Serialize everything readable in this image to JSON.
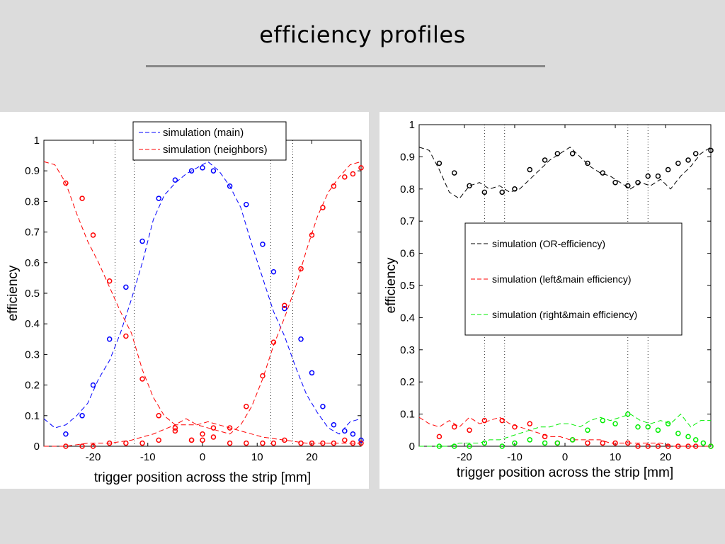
{
  "title": "efficiency profiles",
  "chart_data": [
    {
      "type": "line",
      "xlabel": "trigger position across the strip [mm]",
      "ylabel": "efficiency",
      "xlim": [
        -29,
        29
      ],
      "ylim": [
        0,
        1
      ],
      "xticks": [
        -20,
        -10,
        0,
        10,
        20
      ],
      "yticks": [
        0,
        0.1,
        0.2,
        0.3,
        0.4,
        0.5,
        0.6,
        0.7,
        0.8,
        0.9,
        1
      ],
      "vlines": [
        -16,
        -12.5,
        12.5,
        16.5
      ],
      "legend_position": "top-center",
      "series": [
        {
          "name": "simulation (main)",
          "style": "dashed",
          "color": "#0000ff",
          "x": [
            -29,
            -27,
            -25,
            -23,
            -21,
            -19,
            -17,
            -15,
            -13,
            -11,
            -9,
            -7,
            -5,
            -3,
            -1,
            1,
            3,
            5,
            7,
            9,
            11,
            13,
            15,
            17,
            19,
            21,
            23,
            25,
            27,
            29
          ],
          "y": [
            0.09,
            0.06,
            0.07,
            0.1,
            0.14,
            0.22,
            0.28,
            0.37,
            0.48,
            0.6,
            0.74,
            0.82,
            0.86,
            0.89,
            0.91,
            0.93,
            0.9,
            0.85,
            0.78,
            0.66,
            0.55,
            0.44,
            0.36,
            0.26,
            0.17,
            0.11,
            0.06,
            0.04,
            0.08,
            0.09
          ]
        },
        {
          "name": "simulation (neighbors)",
          "style": "dashed",
          "color": "#ff0000",
          "x": [
            -29,
            -27,
            -25,
            -23,
            -21,
            -19,
            -17,
            -15,
            -13,
            -11,
            -9,
            -7,
            -5,
            -3,
            -1,
            1,
            3,
            5,
            7,
            9,
            11,
            13,
            15,
            17,
            19,
            21,
            23,
            25,
            27,
            29
          ],
          "y": [
            0.93,
            0.92,
            0.86,
            0.76,
            0.67,
            0.6,
            0.52,
            0.44,
            0.37,
            0.25,
            0.16,
            0.1,
            0.07,
            0.09,
            0.07,
            0.06,
            0.05,
            0.04,
            0.07,
            0.13,
            0.22,
            0.33,
            0.42,
            0.52,
            0.64,
            0.75,
            0.83,
            0.88,
            0.92,
            0.93
          ]
        },
        {
          "name": "",
          "style": "dashed",
          "color": "#ff0000",
          "x": [
            -29,
            -25,
            -21,
            -17,
            -13,
            -9,
            -5,
            -1,
            1,
            3,
            7,
            11,
            15,
            19,
            23,
            27,
            29
          ],
          "y": [
            0,
            0,
            0.01,
            0.01,
            0.02,
            0.04,
            0.07,
            0.07,
            0.08,
            0.07,
            0.05,
            0.03,
            0.02,
            0.01,
            0.01,
            0.01,
            0.01
          ]
        }
      ],
      "markers": [
        {
          "color": "#0000ff",
          "x": [
            -25,
            -22,
            -20,
            -17,
            -14,
            -11,
            -8,
            -5,
            -2,
            0,
            2,
            5,
            8,
            11,
            13,
            15,
            18,
            20,
            22,
            24,
            26,
            27.5,
            29
          ],
          "y": [
            0.04,
            0.1,
            0.2,
            0.35,
            0.52,
            0.67,
            0.81,
            0.87,
            0.9,
            0.91,
            0.9,
            0.85,
            0.79,
            0.66,
            0.57,
            0.45,
            0.35,
            0.24,
            0.13,
            0.07,
            0.05,
            0.04,
            0.02
          ]
        },
        {
          "color": "#ff0000",
          "x": [
            -25,
            -22,
            -20,
            -17,
            -14,
            -11,
            -8,
            -5,
            -2,
            0,
            2,
            5,
            8,
            11,
            13,
            15,
            18,
            20,
            22,
            24,
            26,
            27.5,
            29
          ],
          "y": [
            0.86,
            0.81,
            0.69,
            0.54,
            0.36,
            0.22,
            0.1,
            0.06,
            0.02,
            0.02,
            0.03,
            0.06,
            0.13,
            0.23,
            0.34,
            0.46,
            0.58,
            0.69,
            0.78,
            0.85,
            0.88,
            0.89,
            0.91
          ]
        },
        {
          "color": "#ff0000",
          "x": [
            -25,
            -22,
            -20,
            -17,
            -14,
            -11,
            -8,
            -5,
            -2,
            0,
            2,
            5,
            8,
            11,
            13,
            15,
            18,
            20,
            22,
            24,
            26,
            27.5,
            29
          ],
          "y": [
            0,
            0,
            0,
            0.01,
            0.01,
            0.01,
            0.02,
            0.05,
            0.02,
            0.04,
            0.06,
            0.01,
            0.01,
            0.01,
            0.01,
            0.02,
            0.01,
            0.01,
            0.01,
            0.01,
            0.02,
            0.01,
            0.01
          ]
        }
      ]
    },
    {
      "type": "line",
      "xlabel": "trigger position across the strip [mm]",
      "ylabel": "efficiency",
      "xlim": [
        -29,
        29
      ],
      "ylim": [
        0,
        1
      ],
      "xticks": [
        -20,
        -10,
        0,
        10,
        20
      ],
      "yticks": [
        0,
        0.1,
        0.2,
        0.3,
        0.4,
        0.5,
        0.6,
        0.7,
        0.8,
        0.9,
        1
      ],
      "vlines": [
        -16,
        -12,
        12.5,
        16.5
      ],
      "legend_position": "center",
      "series": [
        {
          "name": "simulation (OR-efficiency)",
          "style": "dashed",
          "color": "#000000",
          "x": [
            -29,
            -27,
            -25,
            -23,
            -21,
            -19,
            -17,
            -15,
            -13,
            -11,
            -9,
            -7,
            -5,
            -3,
            -1,
            1,
            3,
            5,
            7,
            9,
            11,
            13,
            15,
            17,
            19,
            21,
            23,
            25,
            27,
            29
          ],
          "y": [
            0.93,
            0.92,
            0.86,
            0.79,
            0.77,
            0.81,
            0.82,
            0.8,
            0.81,
            0.79,
            0.8,
            0.83,
            0.86,
            0.89,
            0.91,
            0.93,
            0.9,
            0.87,
            0.85,
            0.84,
            0.82,
            0.8,
            0.82,
            0.81,
            0.83,
            0.8,
            0.84,
            0.87,
            0.91,
            0.93
          ]
        },
        {
          "name": "simulation (left&main efficiency)",
          "style": "dashed",
          "color": "#ff0000",
          "x": [
            -29,
            -27,
            -25,
            -23,
            -21,
            -19,
            -17,
            -15,
            -13,
            -11,
            -9,
            -7,
            -5,
            -3,
            -1,
            1,
            3,
            5,
            7,
            9,
            11,
            13,
            15,
            17,
            19,
            21,
            23,
            25,
            27,
            29
          ],
          "y": [
            0.09,
            0.07,
            0.06,
            0.08,
            0.06,
            0.09,
            0.07,
            0.08,
            0.09,
            0.07,
            0.06,
            0.05,
            0.04,
            0.03,
            0.03,
            0.02,
            0.02,
            0.02,
            0.02,
            0.01,
            0.01,
            0.01,
            0.01,
            0.01,
            0.01,
            0,
            0,
            0,
            0,
            0
          ]
        },
        {
          "name": "simulation (right&main efficiency)",
          "style": "dashed",
          "color": "#00ee00",
          "x": [
            -29,
            -27,
            -25,
            -23,
            -21,
            -19,
            -17,
            -15,
            -13,
            -11,
            -9,
            -7,
            -5,
            -3,
            -1,
            1,
            3,
            5,
            7,
            9,
            11,
            13,
            15,
            17,
            19,
            21,
            23,
            25,
            27,
            29
          ],
          "y": [
            0,
            0,
            0,
            0,
            0.01,
            0.01,
            0.01,
            0.02,
            0.02,
            0.03,
            0.04,
            0.05,
            0.06,
            0.06,
            0.07,
            0.07,
            0.06,
            0.08,
            0.09,
            0.08,
            0.09,
            0.1,
            0.08,
            0.07,
            0.08,
            0.07,
            0.1,
            0.06,
            0.08,
            0.08
          ]
        }
      ],
      "markers": [
        {
          "color": "#000000",
          "x": [
            -25,
            -22,
            -19,
            -16,
            -12.5,
            -10,
            -7,
            -4,
            -1.5,
            1.5,
            4.5,
            7.5,
            10,
            12.5,
            14.5,
            16.5,
            18.5,
            20.5,
            22.5,
            24.5,
            26,
            29
          ],
          "y": [
            0.88,
            0.85,
            0.81,
            0.79,
            0.79,
            0.8,
            0.86,
            0.89,
            0.91,
            0.91,
            0.88,
            0.85,
            0.82,
            0.81,
            0.82,
            0.84,
            0.84,
            0.86,
            0.88,
            0.89,
            0.91,
            0.92
          ]
        },
        {
          "color": "#ff0000",
          "x": [
            -25,
            -22,
            -19,
            -16,
            -12.5,
            -10,
            -7,
            -4,
            -1.5,
            1.5,
            4.5,
            7.5,
            10,
            12.5,
            14.5,
            16.5,
            18.5,
            20.5,
            22.5,
            24.5,
            26,
            29
          ],
          "y": [
            0.03,
            0.06,
            0.05,
            0.08,
            0.08,
            0.06,
            0.07,
            0.03,
            0.01,
            0.02,
            0.01,
            0.01,
            0.01,
            0.01,
            0,
            0,
            0,
            0,
            0,
            0,
            0,
            0
          ]
        },
        {
          "color": "#00ee00",
          "x": [
            -25,
            -22,
            -19,
            -16,
            -12.5,
            -10,
            -7,
            -4,
            -1.5,
            1.5,
            4.5,
            7.5,
            10,
            12.5,
            14.5,
            16.5,
            18.5,
            20.5,
            22.5,
            24.5,
            26,
            27.5,
            29
          ],
          "y": [
            0,
            0,
            0,
            0.01,
            0,
            0.01,
            0.02,
            0.01,
            0.01,
            0.02,
            0.05,
            0.08,
            0.07,
            0.1,
            0.06,
            0.06,
            0.05,
            0.07,
            0.04,
            0.03,
            0.02,
            0.01,
            0
          ]
        }
      ]
    }
  ]
}
